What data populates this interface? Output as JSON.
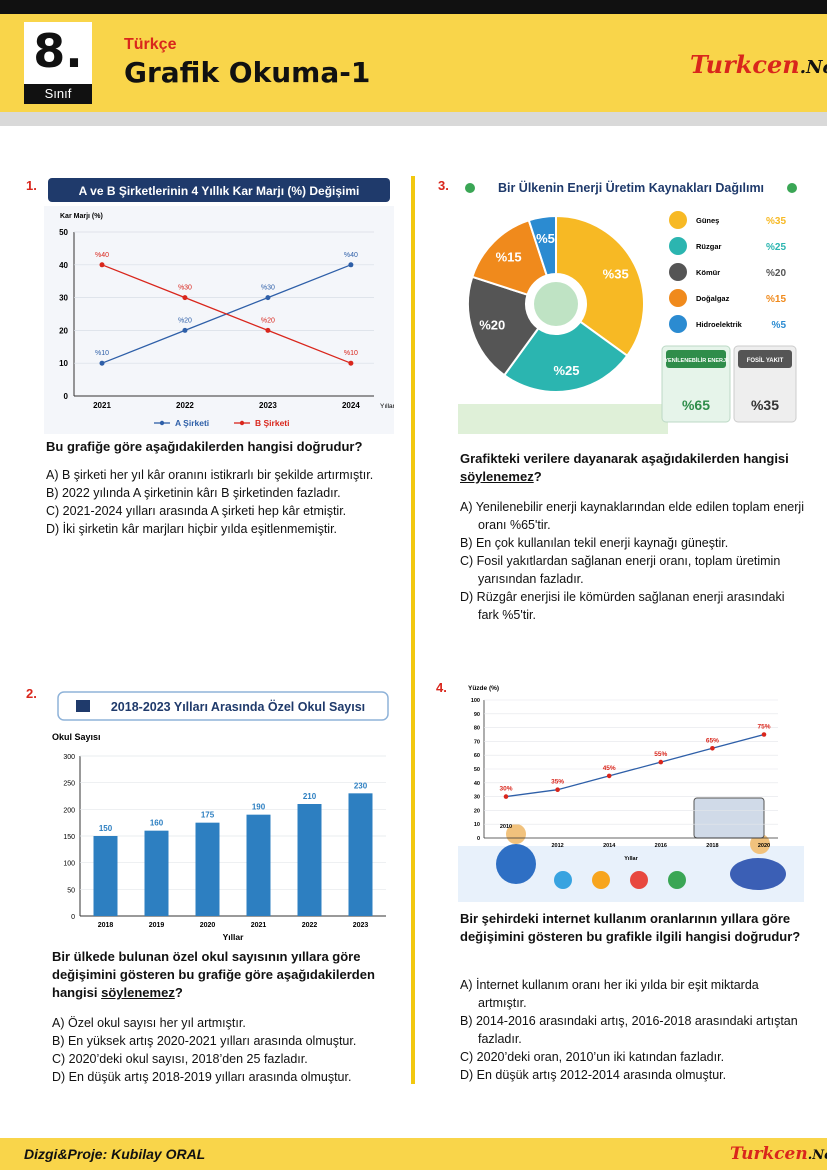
{
  "header": {
    "grade_number": "8.",
    "grade_label": "Sınıf",
    "subject": "Türkçe",
    "title": "Grafik Okuma-1",
    "logo_main": "Turkcen",
    "logo_ext": ".Net"
  },
  "footer": {
    "credit": "Dizgi&Proje: Kubilay ORAL",
    "logo_main": "Turkcen",
    "logo_ext": ".Net"
  },
  "q1": {
    "number": "1.",
    "chart_title": "A ve B Şirketlerinin 4 Yıllık Kar Marjı (%) Değişimi",
    "question": "Bu grafiğe göre aşağıdakilerden hangisi doğrudur?",
    "options": [
      "A) B şirketi her yıl kâr oranını istikrarlı bir şekilde artırmıştır.",
      "B) 2022 yılında A şirketinin kârı B şirketinden fazladır.",
      "C) 2021-2024 yılları arasında A şirketi hep kâr etmiştir.",
      "D) İki şirketin kâr marjları hiçbir yılda eşitlenmemiştir."
    ]
  },
  "q2": {
    "number": "2.",
    "chart_title": "2018-2023 Yılları Arasında Özel Okul Sayısı",
    "question_a": "Bir ülkede bulunan özel okul sayısının yıllara göre değişimini gösteren bu grafiğe göre aşağıdakilerden hangisi ",
    "question_u": "söylenemez",
    "question_b": "?",
    "options": [
      "A) Özel okul sayısı her yıl artmıştır.",
      "B) En yüksek artış 2020-2021 yılları arasında olmuştur.",
      "C) 2020’deki okul sayısı, 2018’den 25 fazladır.",
      "D) En düşük artış 2018-2019 yılları arasında olmuştur."
    ]
  },
  "q3": {
    "number": "3.",
    "chart_title": "Bir Ülkenin Enerji Üretim Kaynakları Dağılımı",
    "question_a": "Grafikteki verilere dayanarak aşağıdakilerden hangisi ",
    "question_u": "söylenemez",
    "question_b": "?",
    "renewable_label": "YENİLENEBİLİR ENERJİ",
    "fossil_label": "FOSİL YAKIT",
    "renewable_value": "%65",
    "fossil_value": "%35",
    "options": [
      "A) Yenilenebilir enerji kaynaklarından elde edilen toplam enerji oranı %65'tir.",
      "B) En çok kullanılan tekil enerji kaynağı güneştir.",
      "C) Fosil yakıtlardan sağlanan enerji oranı, toplam üretimin yarısından fazladır.",
      "D) Rüzgâr enerjisi ile kömürden sağlanan enerji arasındaki fark %5'tir."
    ]
  },
  "q4": {
    "number": "4.",
    "question": "Bir şehirdeki internet kullanım oranlarının yıllara göre değişimini gösteren bu grafikle ilgili hangisi doğrudur?",
    "options": [
      "A) İnternet kullanım oranı her iki yılda bir eşit miktarda artmıştır.",
      "B) 2014-2016 arasındaki artış, 2016-2018 arasındaki artıştan fazladır.",
      "C) 2020’deki oran, 2010’un iki katından fazladır.",
      "D) En düşük artış 2012-2014 arasında olmuştur."
    ]
  },
  "chart_data": [
    {
      "type": "line",
      "title": "A ve B Şirketlerinin 4 Yıllık Kar Marjı (%) Değişimi",
      "ylabel": "Kar Marjı (%)",
      "xlabel": "Yıllar",
      "x": [
        "2021",
        "2022",
        "2023",
        "2024"
      ],
      "ylim": [
        0,
        50
      ],
      "yticks": [
        0,
        10,
        20,
        30,
        40,
        50
      ],
      "series": [
        {
          "name": "A Şirketi",
          "values": [
            10,
            20,
            30,
            40
          ],
          "labels": [
            "%10",
            "%20",
            "%30",
            "%40"
          ],
          "color": "#2e5fa8"
        },
        {
          "name": "B Şirketi",
          "values": [
            40,
            30,
            20,
            10
          ],
          "labels": [
            "%40",
            "%30",
            "%20",
            "%10"
          ],
          "color": "#d9261c"
        }
      ],
      "legend": "bottom"
    },
    {
      "type": "bar",
      "title": "2018-2023 Yılları Arasında Özel Okul Sayısı",
      "ylabel": "Okul Sayısı",
      "xlabel": "Yıllar",
      "categories": [
        "2018",
        "2019",
        "2020",
        "2021",
        "2022",
        "2023"
      ],
      "values": [
        150,
        160,
        175,
        190,
        210,
        230
      ],
      "labels": [
        "150",
        "160",
        "175",
        "190",
        "210",
        "230"
      ],
      "ylim": [
        0,
        300
      ],
      "yticks": [
        0,
        50,
        100,
        150,
        200,
        250,
        300
      ],
      "color": "#2d7fc1"
    },
    {
      "type": "pie",
      "title": "Bir Ülkenin Enerji Üretim Kaynakları Dağılımı",
      "slices": [
        {
          "name": "Güneş",
          "value": 35,
          "label": "%35",
          "color": "#f7b924"
        },
        {
          "name": "Rüzgar",
          "value": 25,
          "label": "%25",
          "color": "#2bb5b0"
        },
        {
          "name": "Kömür",
          "value": 20,
          "label": "%20",
          "color": "#555555"
        },
        {
          "name": "Doğalgaz",
          "value": 15,
          "label": "%15",
          "color": "#f08a1c"
        },
        {
          "name": "Hidroelektrik",
          "value": 5,
          "label": "%5",
          "color": "#2b8bd1"
        }
      ],
      "legend": "right"
    },
    {
      "type": "line",
      "ylabel": "Yüzde (%)",
      "xlabel": "Yıllar",
      "x": [
        "2010",
        "2012",
        "2014",
        "2016",
        "2018",
        "2020"
      ],
      "ylim": [
        0,
        100
      ],
      "yticks": [
        0,
        10,
        20,
        30,
        40,
        50,
        60,
        70,
        80,
        90,
        100
      ],
      "series": [
        {
          "values": [
            30,
            35,
            45,
            55,
            65,
            75
          ],
          "labels": [
            "30%",
            "35%",
            "45%",
            "55%",
            "65%",
            "75%"
          ],
          "color": "#2e5fa8"
        }
      ]
    }
  ]
}
